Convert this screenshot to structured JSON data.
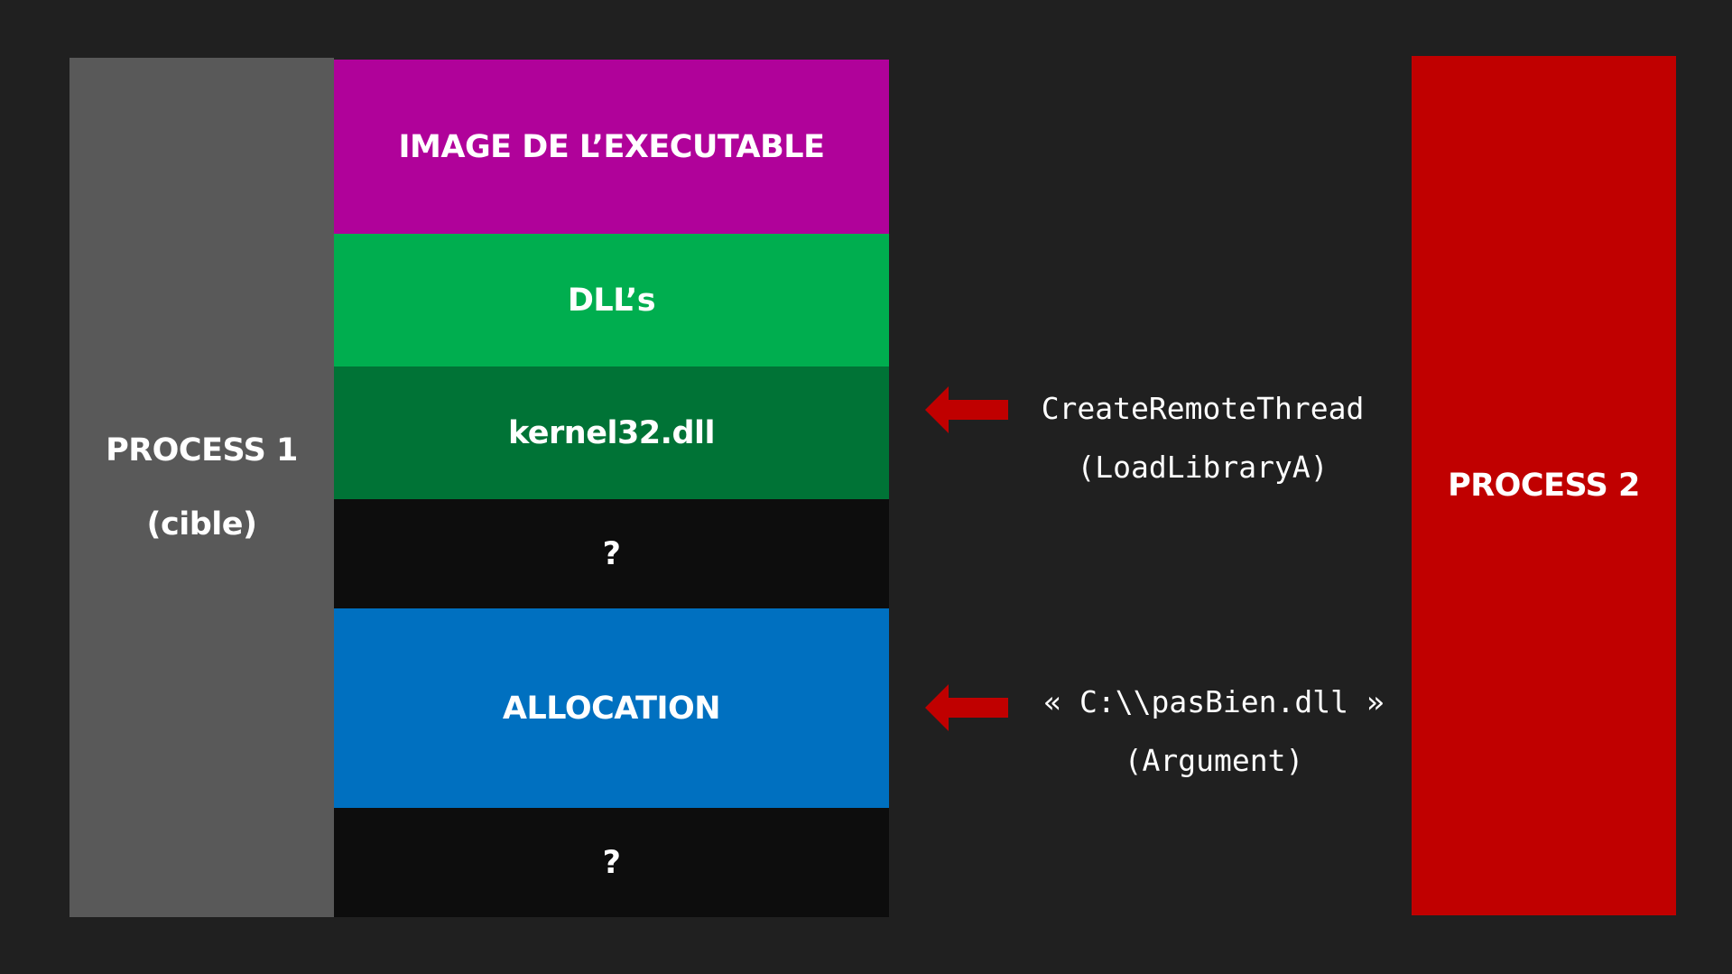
{
  "process1": {
    "title": "PROCESS 1",
    "subtitle": "(cible)"
  },
  "memory_segments": [
    {
      "label": "IMAGE DE L’EXECUTABLE",
      "color": "#B0029A"
    },
    {
      "label": "DLL’s",
      "color": "#00AE4F"
    },
    {
      "label": "kernel32.dll",
      "color": "#007336"
    },
    {
      "label": "?",
      "color": "#0D0D0D"
    },
    {
      "label": "ALLOCATION",
      "color": "#0070C0"
    },
    {
      "label": "?",
      "color": "#0D0D0D"
    }
  ],
  "process2": {
    "title": "PROCESS 2"
  },
  "annotations": {
    "thread_call": "CreateRemoteThread",
    "thread_arg": "(LoadLibraryA)",
    "dll_path": "« C:\\\\pasBien.dll »",
    "dll_path_note": "(Argument)"
  },
  "colors": {
    "background": "#202020",
    "process1": "#595959",
    "process2": "#C00000",
    "arrow": "#C00000"
  },
  "icons": {
    "arrow_top": "left-arrow-icon",
    "arrow_bottom": "left-arrow-icon"
  }
}
